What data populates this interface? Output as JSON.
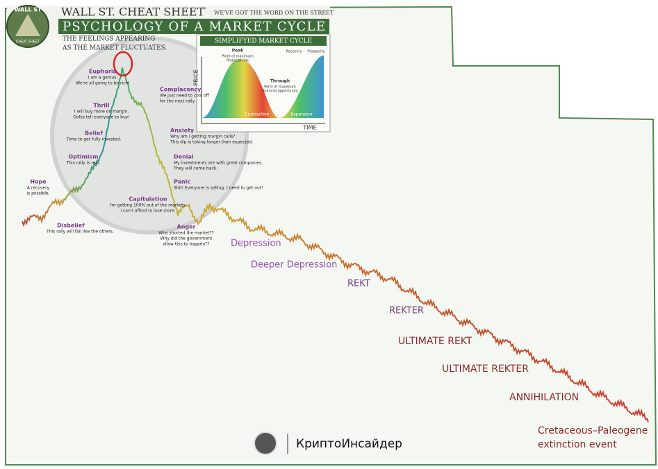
{
  "header": {
    "logo_top": "WALL ST",
    "logo_bottom": "CHEAT SHEET",
    "brand": "WALL ST. CHEAT SHEET",
    "trademark": "™",
    "tagline": "WE'VE GOT THE WORD ON THE STREET",
    "title": "PSYCHOLOGY OF A MARKET CYCLE",
    "subtitle": [
      "THE FEELINGS APPEARING",
      "AS THE MARKET FLUCTUATES."
    ]
  },
  "inset": {
    "title": "SIMPLIFYED MARKET CYCLE",
    "y_axis": "PRICE",
    "x_axis": "TIME",
    "peak": "Peak",
    "peak_note": [
      "Point of maximum",
      "financial risk"
    ],
    "through": "Through",
    "through_note": [
      "Point of maximum",
      "financial opportunity"
    ],
    "recovery": "Recovery",
    "prosperity": "Prosperity",
    "contraction": "Contraction",
    "expansion": "Expansion"
  },
  "stages": [
    {
      "label": "Hope",
      "note": [
        "A recovery",
        "is possible."
      ]
    },
    {
      "label": "Optimism",
      "note": [
        "This rally is real."
      ]
    },
    {
      "label": "Belief",
      "note": [
        "Time to get fully invested."
      ]
    },
    {
      "label": "Thrill",
      "note": [
        "I will buy more on margin.",
        "Gotta tell everyone to buy!"
      ]
    },
    {
      "label": "Euphoria",
      "note": [
        "I am a genius.",
        "We're all going to be rich!"
      ]
    },
    {
      "label": "Complacency",
      "note": [
        "We just need to cool off",
        "for the next rally."
      ]
    },
    {
      "label": "Anxiety",
      "note": [
        "Why am I getting margin calls?",
        "This dip is taking longer than expected."
      ]
    },
    {
      "label": "Denial",
      "note": [
        "My investments are with great companies.",
        "They will come back."
      ]
    },
    {
      "label": "Panic",
      "note": [
        "Shit! Everyone is selling. I need to get out!"
      ]
    },
    {
      "label": "Capitulation",
      "note": [
        "I'm getting 100% out of the markets.",
        "I can't afford to lose more."
      ]
    },
    {
      "label": "Anger",
      "note": [
        "Who shorted the market??",
        "Why did the government",
        "allow this to happen??"
      ]
    },
    {
      "label": "Disbelief",
      "note": [
        "This rally will fail like the others."
      ]
    }
  ],
  "meme_labels": [
    {
      "text": [
        "Depression"
      ]
    },
    {
      "text": [
        "Deeper Depression"
      ]
    },
    {
      "text": [
        "REKT"
      ]
    },
    {
      "text": [
        "REKTER"
      ]
    },
    {
      "text": [
        "ULTIMATE REKT"
      ]
    },
    {
      "text": [
        "ULTIMATE REKTER"
      ]
    },
    {
      "text": [
        "ANNIHILATION"
      ]
    },
    {
      "text": [
        "Cretaceous–Paleogene",
        "extinction event"
      ]
    }
  ],
  "watermark": "КриптоИнсайдер"
}
